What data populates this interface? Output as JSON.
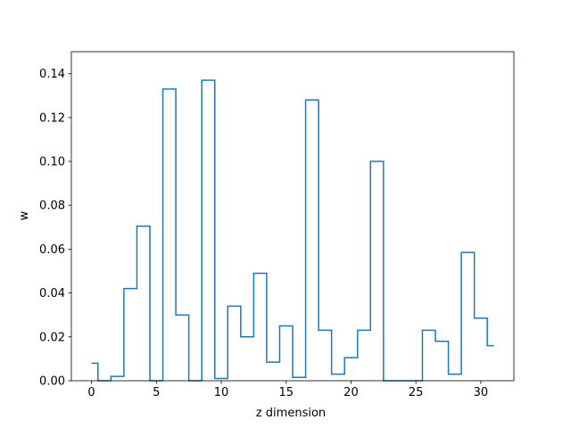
{
  "chart_data": {
    "type": "line",
    "drawstyle": "steps-mid",
    "title": "",
    "xlabel": "z dimension",
    "ylabel": "w",
    "xlim": [
      -1.55,
      32.55
    ],
    "ylim": [
      0,
      0.15
    ],
    "xticks": [
      0,
      5,
      10,
      15,
      20,
      25,
      30
    ],
    "yticks": [
      0.0,
      0.02,
      0.04,
      0.06,
      0.08,
      0.1,
      0.12,
      0.14
    ],
    "grid": false,
    "line_color": "#1f77b4",
    "series": [
      {
        "x": [
          0,
          1,
          2,
          3,
          4,
          5,
          6,
          7,
          8,
          9,
          10,
          11,
          12,
          13,
          14,
          15,
          16,
          17,
          18,
          19,
          20,
          21,
          22,
          23,
          24,
          25,
          26,
          27,
          28,
          29,
          30,
          31
        ],
        "values": [
          0.008,
          0.0,
          0.002,
          0.042,
          0.0705,
          0.0,
          0.133,
          0.03,
          0.0,
          0.137,
          0.001,
          0.034,
          0.02,
          0.049,
          0.0085,
          0.025,
          0.0015,
          0.128,
          0.023,
          0.003,
          0.0105,
          0.023,
          0.1,
          0.0,
          0.0,
          0.0,
          0.023,
          0.018,
          0.003,
          0.0585,
          0.0285,
          0.016
        ]
      }
    ]
  }
}
